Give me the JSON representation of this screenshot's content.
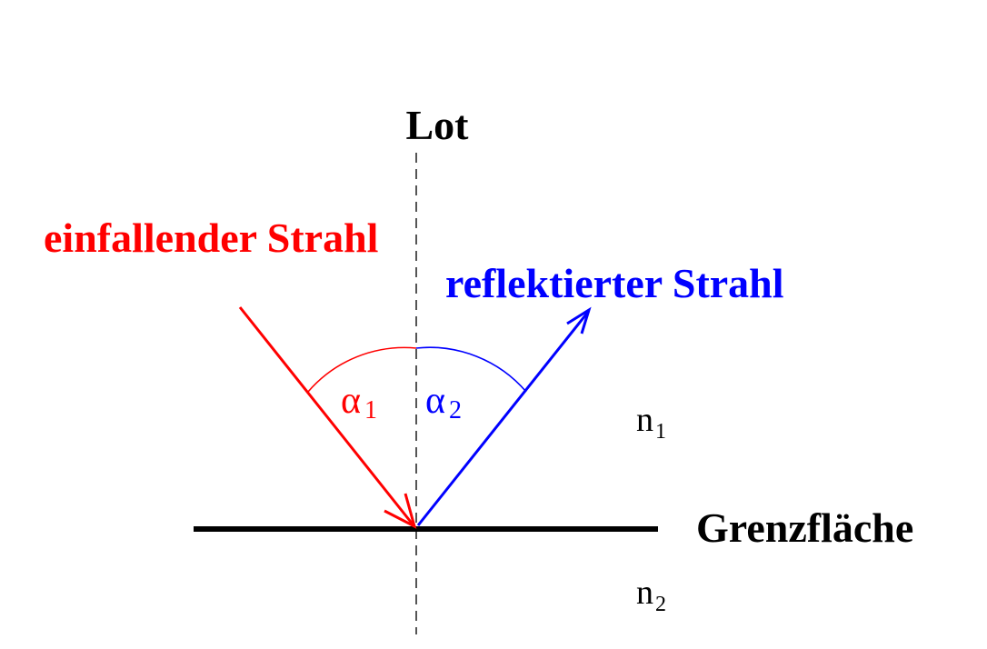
{
  "labels": {
    "normal": "Lot",
    "incident": "einfallender Strahl",
    "reflected": "reflektierter Strahl",
    "interface": "Grenzfläche",
    "medium1_symbol": "n",
    "medium1_index": "1",
    "medium2_symbol": "n",
    "medium2_index": "2",
    "angle1_symbol": "α",
    "angle1_index": "1",
    "angle2_symbol": "α",
    "angle2_index": "2"
  },
  "colors": {
    "incident": "#ff0000",
    "reflected": "#0000ff",
    "interface": "#000000",
    "normal": "#555555",
    "text": "#000000"
  }
}
